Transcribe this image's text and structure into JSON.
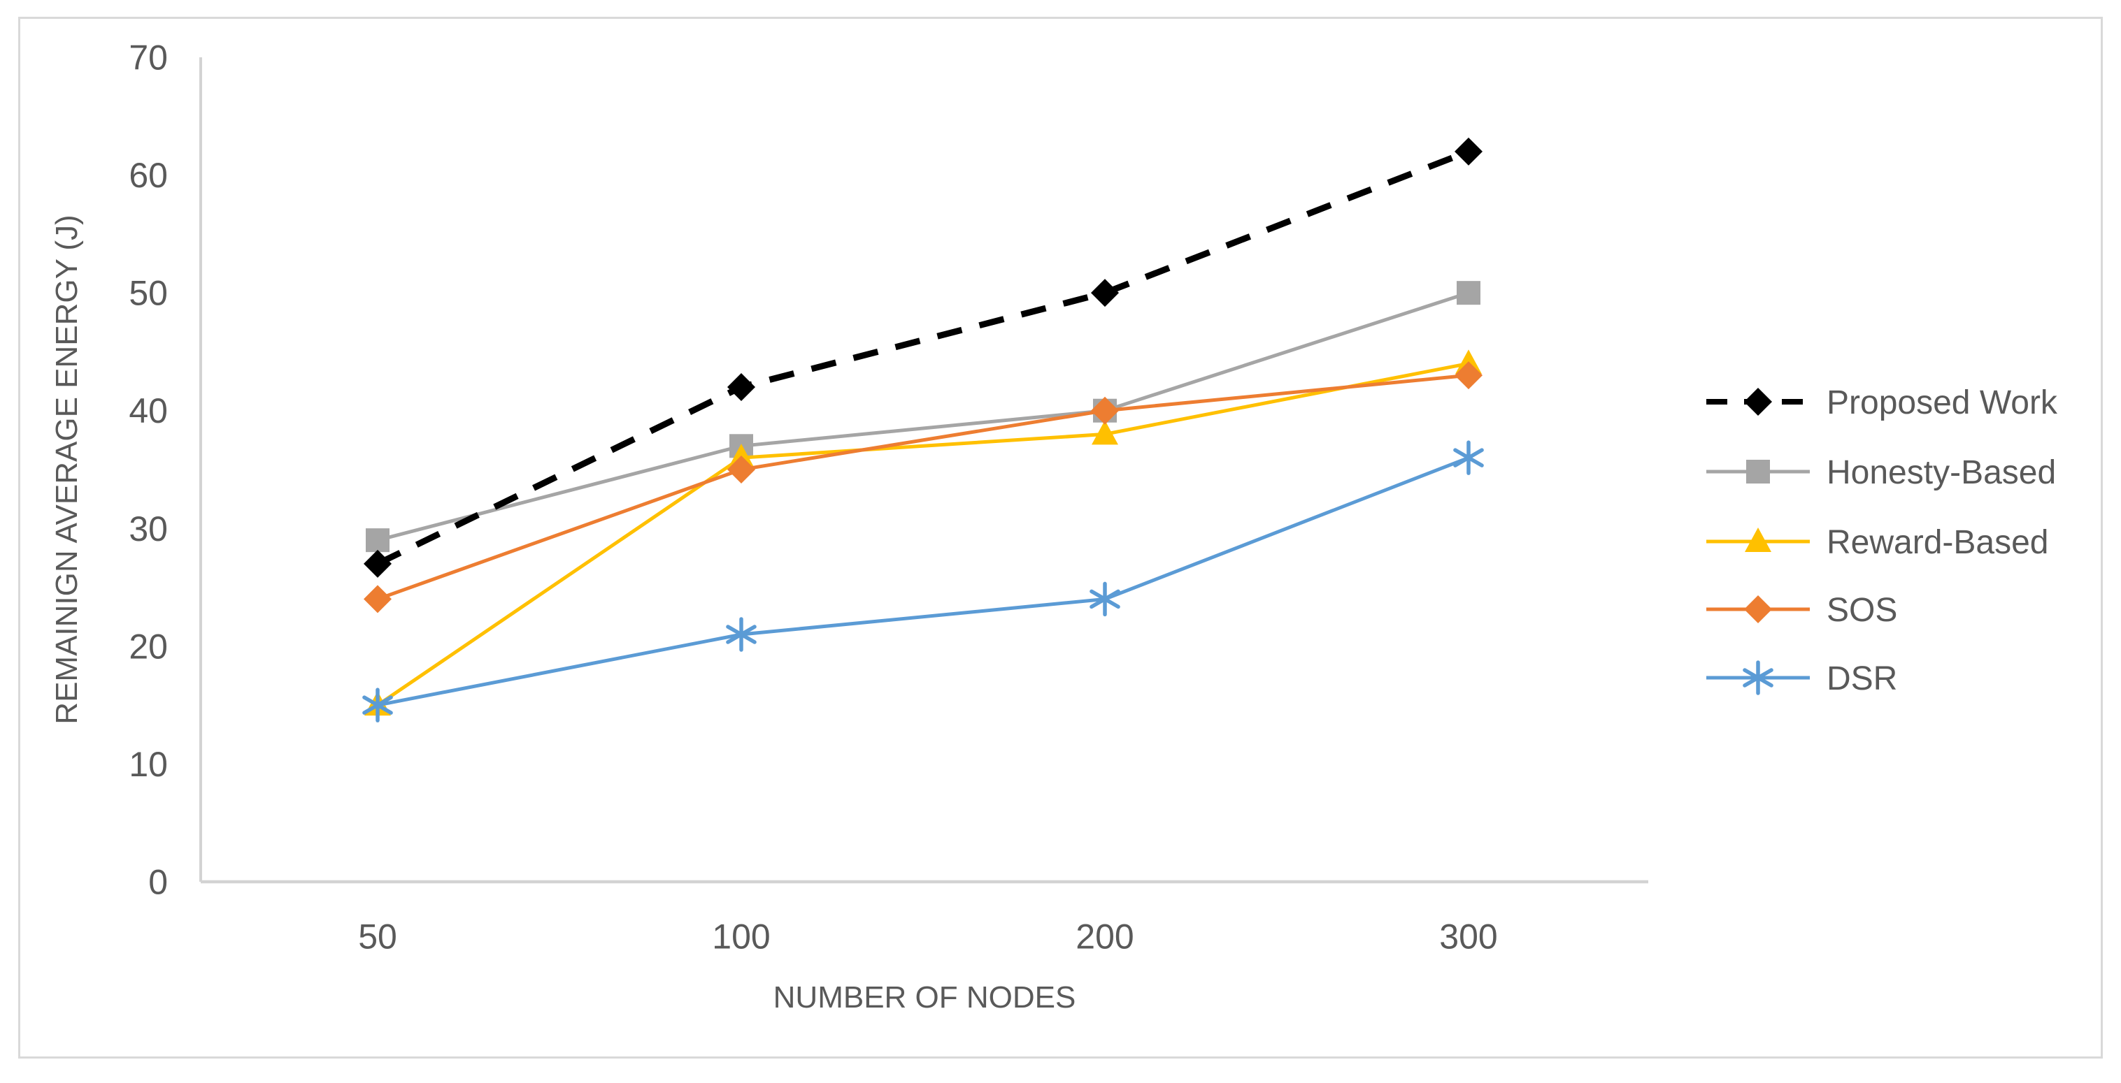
{
  "figure": {
    "background": "#ffffff",
    "border_color": "#d9d9d9"
  },
  "chart_data": {
    "type": "line",
    "title": "",
    "xlabel": "NUMBER OF NODES",
    "ylabel": "REMAINIGN AVERAGE ENERGY (J)",
    "categories": [
      "50",
      "100",
      "200",
      "300"
    ],
    "y_ticks": [
      "0",
      "10",
      "20",
      "30",
      "40",
      "50",
      "60",
      "70"
    ],
    "ylim": [
      0,
      70
    ],
    "grid": false,
    "legend_position": "right",
    "axis_color": "#d3d3d3",
    "text_color": "#595959",
    "series": [
      {
        "name": "Proposed Work",
        "values": [
          27,
          42,
          50,
          62
        ],
        "color": "#000000",
        "marker": "diamond",
        "dashed": true
      },
      {
        "name": "Honesty-Based",
        "values": [
          29,
          37,
          40,
          50
        ],
        "color": "#A5A5A5",
        "marker": "square",
        "dashed": false
      },
      {
        "name": "Reward-Based",
        "values": [
          15,
          36,
          38,
          44
        ],
        "color": "#FFC000",
        "marker": "triangle",
        "dashed": false
      },
      {
        "name": "SOS",
        "values": [
          24,
          35,
          40,
          43
        ],
        "color": "#ED7D31",
        "marker": "diamond",
        "dashed": false
      },
      {
        "name": "DSR",
        "values": [
          15,
          21,
          24,
          36
        ],
        "color": "#5B9BD5",
        "marker": "asterisk",
        "dashed": false
      }
    ]
  }
}
